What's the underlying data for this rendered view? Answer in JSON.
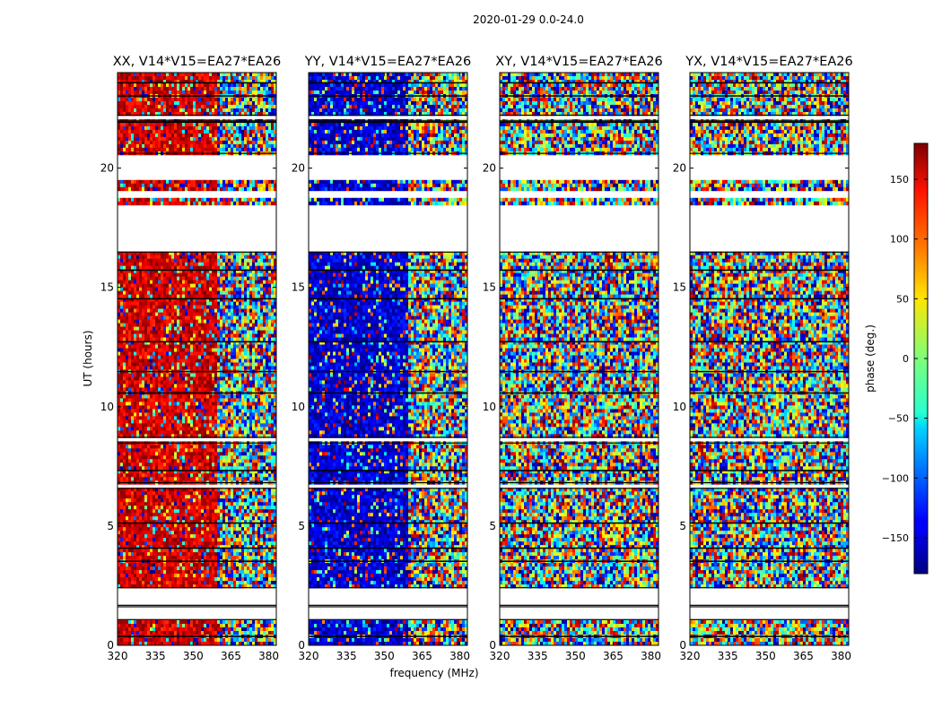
{
  "figure": {
    "suptitle": "2020-01-29 0.0-24.0"
  },
  "chart_data": {
    "type": "heatmap",
    "xlabel": "frequency (MHz)",
    "ylabel": "UT (hours)",
    "xlim": [
      320,
      383
    ],
    "ylim": [
      0,
      24
    ],
    "xticks": [
      320,
      335,
      350,
      365,
      380
    ],
    "yticks": [
      0,
      5,
      10,
      15,
      20
    ],
    "panels": [
      {
        "title": "XX, V14*V15=EA27*EA26",
        "pol": "XX",
        "mean_phase": 150
      },
      {
        "title": "YY, V14*V15=EA27*EA26",
        "pol": "YY",
        "mean_phase": -150
      },
      {
        "title": "XY, V14*V15=EA27*EA26",
        "pol": "XY",
        "mean_phase": null
      },
      {
        "title": "YX, V14*V15=EA27*EA26",
        "pol": "YX",
        "mean_phase": null
      }
    ],
    "colorbar": {
      "label": "phase (deg.)",
      "range": [
        -180,
        180
      ],
      "ticks": [
        150,
        100,
        50,
        0,
        -50,
        -100,
        -150
      ],
      "tick_labels": [
        "150",
        "100",
        "50",
        "0",
        "−50",
        "−100",
        "−150"
      ],
      "colormap": "jet"
    },
    "flagged_ut_ranges_hours": [
      [
        1.1,
        1.6
      ],
      [
        1.7,
        2.4
      ],
      [
        6.6,
        6.8
      ],
      [
        8.5,
        8.7
      ],
      [
        16.5,
        20.6
      ],
      [
        22.0,
        22.2
      ]
    ],
    "flagged_ut_lines_hours": [
      [
        0.35,
        0.4
      ],
      [
        3.5,
        3.55
      ],
      [
        4.05,
        4.1
      ],
      [
        5.1,
        5.15
      ],
      [
        7.3,
        7.35
      ],
      [
        10.55,
        10.6
      ],
      [
        11.45,
        11.5
      ],
      [
        12.7,
        12.75
      ],
      [
        14.5,
        14.55
      ],
      [
        15.7,
        15.75
      ],
      [
        21.9,
        21.95
      ],
      [
        23.0,
        23.05
      ],
      [
        23.55,
        23.6
      ]
    ],
    "isolated_data_lines_hours": [
      18.6,
      19.2,
      19.4
    ]
  }
}
